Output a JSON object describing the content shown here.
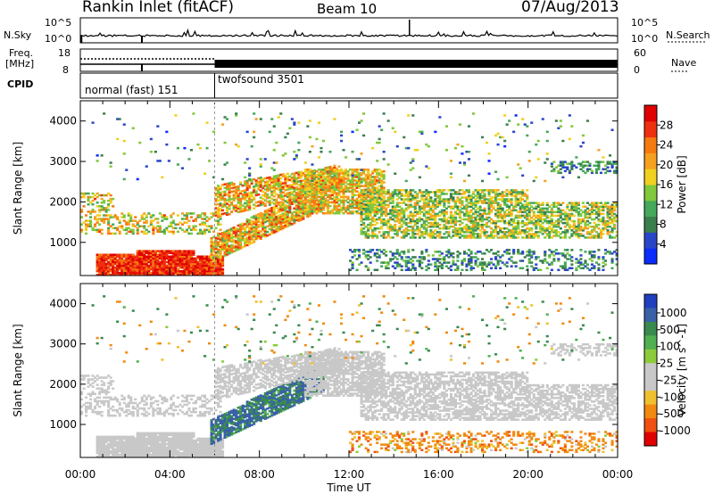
{
  "header": {
    "station": "Rankin Inlet (fitACF)",
    "beam": "Beam 10",
    "date": "07/Aug/2013"
  },
  "noise_panel": {
    "left_label": "N.Sky",
    "right_label": "N.Search",
    "left_ticks": [
      "10^5",
      "10^0"
    ],
    "right_ticks": [
      "10^5",
      "10^0"
    ]
  },
  "freq_panel": {
    "left_label_1": "Freq.",
    "left_label_2": "[MHz]",
    "right_label": "Nave",
    "left_ticks": [
      "18",
      "8"
    ],
    "right_ticks": [
      "60",
      "0"
    ]
  },
  "cpid_panel": {
    "label": "CPID",
    "segments": [
      {
        "name": "normal (fast) 151",
        "start_h": 0,
        "end_h": 6.0
      },
      {
        "name": "twofsound 3501",
        "start_h": 6.0,
        "end_h": 24.0
      }
    ]
  },
  "chart_data": [
    {
      "type": "heatmap",
      "title": "Power",
      "ylabel": "Slant Range [km]",
      "ylim": [
        180,
        4500
      ],
      "y_ticks": [
        "4000",
        "3000",
        "2000",
        "1000"
      ],
      "colorbar": {
        "label": "Power [dB]",
        "ticks": [
          "28",
          "24",
          "20",
          "16",
          "12",
          "8",
          "4"
        ],
        "colors": [
          "#0a2cff",
          "#2a46c8",
          "#3a7e4e",
          "#45a85a",
          "#80c83c",
          "#f0d020",
          "#f6a020",
          "#f57a10",
          "#ef3010",
          "#e00000"
        ],
        "range": [
          0,
          32
        ]
      }
    },
    {
      "type": "heatmap",
      "title": "Velocity",
      "xlabel": "Time UT",
      "ylabel": "Slant Range [km]",
      "ylim": [
        180,
        4500
      ],
      "y_ticks": [
        "4000",
        "3000",
        "2000",
        "1000"
      ],
      "x_ticks": [
        "00:00",
        "04:00",
        "08:00",
        "12:00",
        "16:00",
        "20:00",
        "00:00"
      ],
      "xlim": [
        0,
        24
      ],
      "colorbar": {
        "label": "Velocity [m s^-1]",
        "ticks": [
          "1000",
          "500",
          "100",
          "25",
          "-25",
          "-100",
          "-500",
          "-1000"
        ],
        "colors": [
          "#2040c0",
          "#3a60a8",
          "#3a8a50",
          "#50b050",
          "#8ccc3c",
          "#c8c8c8",
          "#c8c8c8",
          "#f0c030",
          "#f08a10",
          "#f05010",
          "#e00000"
        ]
      }
    }
  ]
}
